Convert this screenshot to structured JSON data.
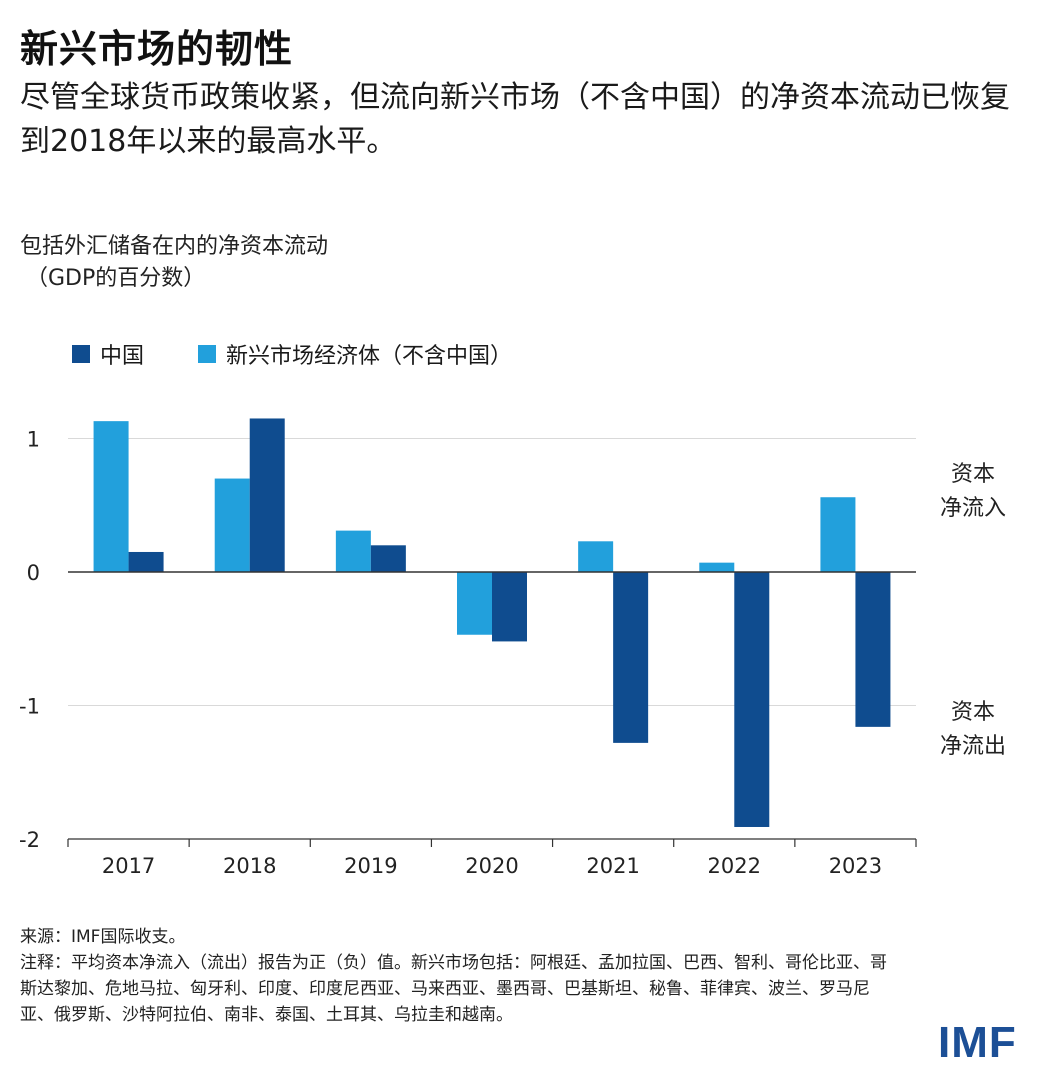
{
  "title": "新兴市场的韧性",
  "subtitle": "尽管全球货币政策收紧，但流向新兴市场（不含中国）的净资本流动已恢复到2018年以来的最高水平。",
  "legend": {
    "china": "中国",
    "em": "新兴市场经济体（不含中国）"
  },
  "side_notes": {
    "inflow": [
      "资本",
      "净流入"
    ],
    "outflow": [
      "资本",
      "净流出"
    ]
  },
  "footer": {
    "source": "来源：IMF国际收支。",
    "note": "注释：平均资本净流入（流出）报告为正（负）值。新兴市场包括：阿根廷、孟加拉国、巴西、智利、哥伦比亚、哥斯达黎加、危地马拉、匈牙利、印度、印度尼西亚、马来西亚、墨西哥、巴基斯坦、秘鲁、菲律宾、波兰、罗马尼亚、俄罗斯、沙特阿拉伯、南非、泰国、土耳其、乌拉圭和越南。"
  },
  "logo": "IMF",
  "colors": {
    "china": "#0f4c8f",
    "em": "#22a0dc",
    "grid": "#d9d9d9",
    "axis": "#333333"
  },
  "chart_data": {
    "type": "bar",
    "ylabel": [
      "包括外汇储备在内的净资本流动",
      "（GDP的百分数）"
    ],
    "categories": [
      "2017",
      "2018",
      "2019",
      "2020",
      "2021",
      "2022",
      "2023"
    ],
    "series": [
      {
        "name": "新兴市场经济体（不含中国）",
        "values": [
          1.13,
          0.7,
          0.31,
          -0.47,
          0.23,
          0.07,
          0.56
        ]
      },
      {
        "name": "中国",
        "values": [
          0.15,
          1.15,
          0.2,
          -0.52,
          -1.28,
          -1.91,
          -1.16
        ]
      }
    ],
    "yticks": [
      1,
      0,
      -1,
      -2
    ],
    "ylim": [
      -2,
      1.25
    ],
    "grid": true
  }
}
